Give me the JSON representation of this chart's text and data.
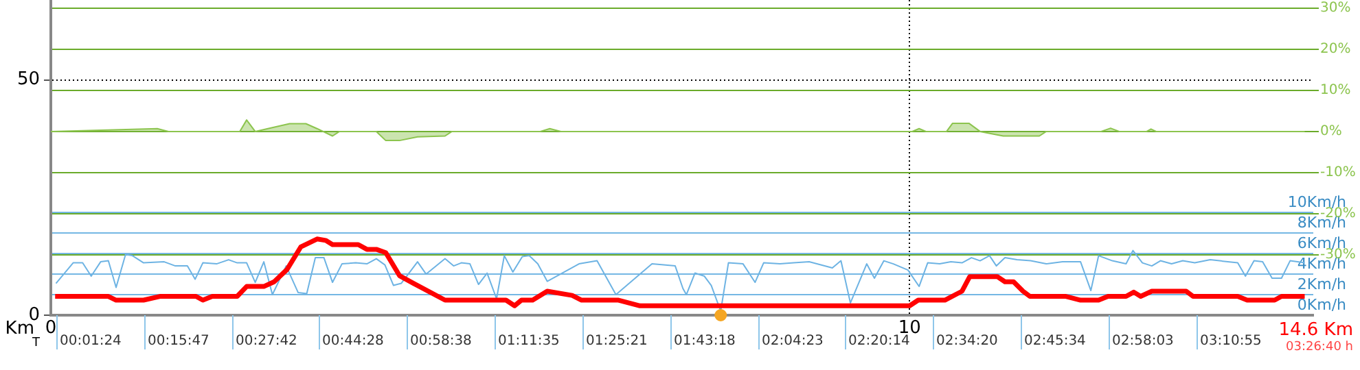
{
  "chart_data": {
    "type": "line",
    "xlabel": "Km",
    "x2label": "T",
    "xlim": [
      0,
      14.7
    ],
    "xticks": [
      0,
      10
    ],
    "ylim": [
      0,
      67
    ],
    "yticks": [
      0,
      50
    ],
    "y2lim": [
      -44.7,
      32
    ],
    "y2ticks": [
      {
        "value": 30,
        "label": "30%"
      },
      {
        "value": 20,
        "label": "20%"
      },
      {
        "value": 10,
        "label": "10%"
      },
      {
        "value": 0,
        "label": "0%"
      },
      {
        "value": -10,
        "label": "-10%"
      },
      {
        "value": -20,
        "label": "-20%"
      },
      {
        "value": -30,
        "label": "-30%"
      }
    ],
    "y3lim": [
      0,
      30.7
    ],
    "y3ticks": [
      {
        "value": 0,
        "label": "0Km/h"
      },
      {
        "value": 2,
        "label": "2Km/h"
      },
      {
        "value": 4,
        "label": "4Km/h"
      },
      {
        "value": 6,
        "label": "6Km/h"
      },
      {
        "value": 8,
        "label": "8Km/h"
      },
      {
        "value": 10,
        "label": "10Km/h"
      }
    ],
    "grid": true,
    "legend": false,
    "annotations": [
      "14.6 Km",
      "03:26:40 h",
      "00:01:24",
      "00:15:47",
      "00:27:42",
      "00:44:28",
      "00:58:38",
      "01:11:35",
      "01:25:21",
      "01:43:18",
      "02:04:23",
      "02:20:14",
      "02:34:20",
      "02:45:34",
      "02:58:03",
      "03:10:55"
    ],
    "series": [
      {
        "type": "scatter",
        "marker": "circle",
        "axis": "y",
        "color": "#f5a623",
        "x": [
          7.8
        ],
        "values": [
          0
        ]
      },
      {
        "axis": "y",
        "color": "#ff0000",
        "x": [
          0.05,
          0.67,
          0.76,
          1.08,
          1.27,
          1.69,
          1.77,
          1.88,
          2.17,
          2.28,
          2.48,
          2.6,
          2.75,
          2.91,
          3.1,
          3.2,
          3.28,
          3.58,
          3.68,
          3.79,
          3.9,
          4.06,
          4.22,
          4.59,
          5.3,
          5.4,
          5.48,
          5.61,
          5.78,
          6.07,
          6.18,
          6.61,
          6.86,
          10.0,
          10.1,
          10.41,
          10.61,
          10.7,
          11.02,
          11.11,
          11.21,
          11.32,
          11.4,
          11.82,
          11.99,
          12.2,
          12.31,
          12.52,
          12.61,
          12.69,
          12.82,
          13.22,
          13.3,
          13.82,
          13.93,
          14.25,
          14.33,
          14.6
        ],
        "values": [
          4.0,
          4.0,
          3.2,
          3.2,
          4.0,
          4.0,
          3.2,
          4.0,
          4.0,
          6.1,
          6.1,
          7.1,
          9.7,
          14.5,
          16.2,
          15.9,
          15.0,
          15.0,
          14.0,
          14.0,
          13.3,
          8.4,
          6.8,
          3.2,
          3.2,
          2.0,
          3.2,
          3.2,
          5.1,
          4.2,
          3.2,
          3.2,
          2.0,
          2.0,
          3.2,
          3.2,
          5.1,
          8.2,
          8.2,
          7.1,
          7.1,
          5.1,
          4.0,
          4.0,
          3.2,
          3.2,
          4.0,
          4.0,
          4.9,
          4.0,
          5.1,
          5.1,
          4.0,
          4.0,
          3.2,
          3.2,
          4.0,
          4.0
        ]
      },
      {
        "type": "area",
        "axis": "y2",
        "color": "#8cc44e",
        "x": [
          0,
          1.24,
          1.37,
          2.2,
          2.28,
          2.38,
          2.57,
          2.78,
          2.97,
          3.1,
          3.28,
          3.36,
          3.79,
          3.9,
          4.06,
          4.27,
          4.59,
          4.67,
          5.7,
          5.81,
          5.94,
          10.03,
          10.11,
          10.19,
          10.43,
          10.5,
          10.69,
          10.82,
          11.09,
          11.51,
          11.59,
          12.23,
          12.34,
          12.44,
          12.76,
          12.81,
          12.87,
          14.6
        ],
        "values": [
          0,
          0.7,
          0,
          0,
          2.8,
          0,
          0.9,
          1.9,
          1.9,
          0.7,
          -1.1,
          0,
          0,
          -2.2,
          -2.2,
          -1.3,
          -1.1,
          0,
          0,
          0.7,
          0,
          0,
          0.7,
          0,
          0,
          2.0,
          2.0,
          0,
          -1.1,
          -1.1,
          0,
          0,
          0.8,
          0,
          0,
          0.6,
          0,
          0
        ]
      },
      {
        "type": "line",
        "axis": "y3",
        "color": "#6db3e3",
        "x": [
          0.06,
          0.26,
          0.37,
          0.47,
          0.58,
          0.67,
          0.76,
          0.87,
          0.95,
          1.08,
          1.32,
          1.45,
          1.59,
          1.68,
          1.77,
          1.93,
          2.07,
          2.17,
          2.28,
          2.38,
          2.48,
          2.58,
          2.74,
          2.88,
          2.98,
          3.08,
          3.18,
          3.28,
          3.39,
          3.55,
          3.68,
          3.79,
          3.89,
          3.99,
          4.08,
          4.27,
          4.37,
          4.59,
          4.69,
          4.78,
          4.88,
          4.98,
          5.08,
          5.19,
          5.28,
          5.38,
          5.49,
          5.57,
          5.67,
          5.78,
          6.15,
          6.36,
          6.58,
          7.0,
          7.27,
          7.36,
          7.4,
          7.5,
          7.61,
          7.69,
          7.8,
          7.89,
          8.06,
          8.2,
          8.3,
          8.49,
          8.65,
          8.83,
          9.1,
          9.2,
          9.31,
          9.5,
          9.59,
          9.7,
          9.81,
          9.98,
          10.11,
          10.21,
          10.35,
          10.48,
          10.61,
          10.72,
          10.82,
          10.93,
          11.01,
          11.11,
          11.25,
          11.41,
          11.59,
          11.78,
          11.99,
          12.11,
          12.2,
          12.36,
          12.52,
          12.6,
          12.71,
          12.82,
          12.92,
          13.05,
          13.18,
          13.32,
          13.5,
          13.82,
          13.91,
          14.01,
          14.11,
          14.22,
          14.33,
          14.43,
          14.6
        ],
        "values": [
          3.1,
          5.1,
          5.1,
          3.8,
          5.2,
          5.3,
          2.7,
          5.9,
          5.8,
          5.1,
          5.2,
          4.8,
          4.8,
          3.5,
          5.1,
          5.0,
          5.4,
          5.1,
          5.1,
          3.2,
          5.2,
          2.0,
          4.8,
          2.2,
          2.1,
          5.6,
          5.6,
          3.2,
          5.0,
          5.1,
          5.0,
          5.5,
          4.9,
          2.9,
          3.1,
          5.2,
          4.0,
          5.5,
          4.8,
          5.1,
          5.0,
          3.0,
          4.1,
          1.6,
          5.8,
          4.2,
          5.7,
          5.8,
          5.0,
          3.3,
          5.0,
          5.3,
          2.0,
          5.0,
          4.8,
          2.6,
          2.0,
          4.1,
          3.8,
          2.9,
          0.4,
          5.1,
          5.0,
          3.2,
          5.1,
          5.0,
          5.1,
          5.2,
          4.6,
          5.3,
          1.2,
          5.0,
          3.6,
          5.3,
          5.0,
          4.4,
          2.8,
          5.1,
          5.0,
          5.2,
          5.1,
          5.6,
          5.3,
          5.8,
          4.8,
          5.6,
          5.4,
          5.3,
          5.0,
          5.2,
          5.2,
          2.4,
          5.8,
          5.3,
          5.0,
          6.3,
          5.1,
          4.8,
          5.3,
          5.0,
          5.3,
          5.1,
          5.4,
          5.1,
          3.8,
          5.3,
          5.2,
          3.6,
          3.6,
          5.3,
          5.1
        ]
      }
    ]
  }
}
